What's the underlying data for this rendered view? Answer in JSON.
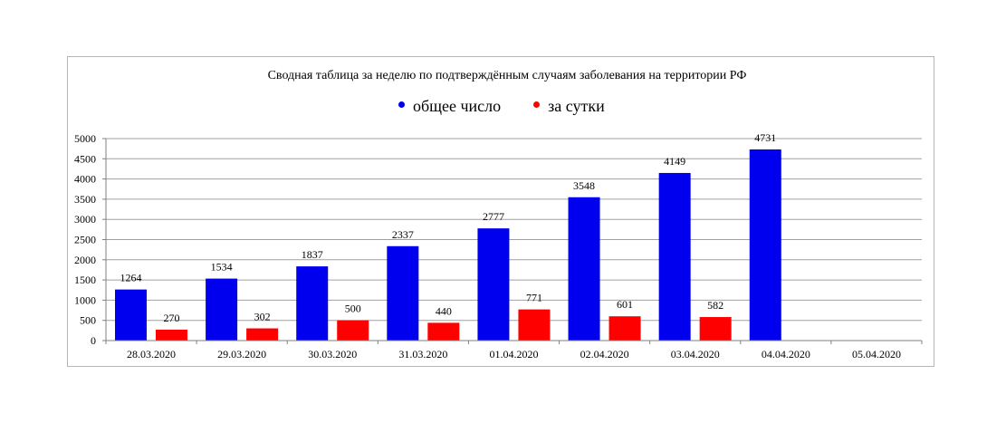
{
  "chart_data": {
    "type": "bar",
    "title": "Сводная таблица за неделю по подтверждённым случаям заболевания на территории РФ",
    "xlabel": "",
    "ylabel": "",
    "ylim": [
      0,
      5000
    ],
    "yticks": [
      "5000",
      "4500",
      "4000",
      "3500",
      "3000",
      "2500",
      "2000",
      "1500",
      "1000",
      "500",
      "0"
    ],
    "grid": true,
    "legend_position": "top-center",
    "categories": [
      "28.03.2020",
      "29.03.2020",
      "30.03.2020",
      "31.03.2020",
      "01.04.2020",
      "02.04.2020",
      "03.04.2020",
      "04.04.2020",
      "05.04.2020"
    ],
    "series": [
      {
        "name": "общее число",
        "color": "#0000ee",
        "values": [
          1264,
          1534,
          1837,
          2337,
          2777,
          3548,
          4149,
          4731,
          null
        ]
      },
      {
        "name": "за сутки",
        "color": "#ff0000",
        "values": [
          270,
          302,
          500,
          440,
          771,
          601,
          582,
          null,
          null
        ]
      }
    ]
  }
}
